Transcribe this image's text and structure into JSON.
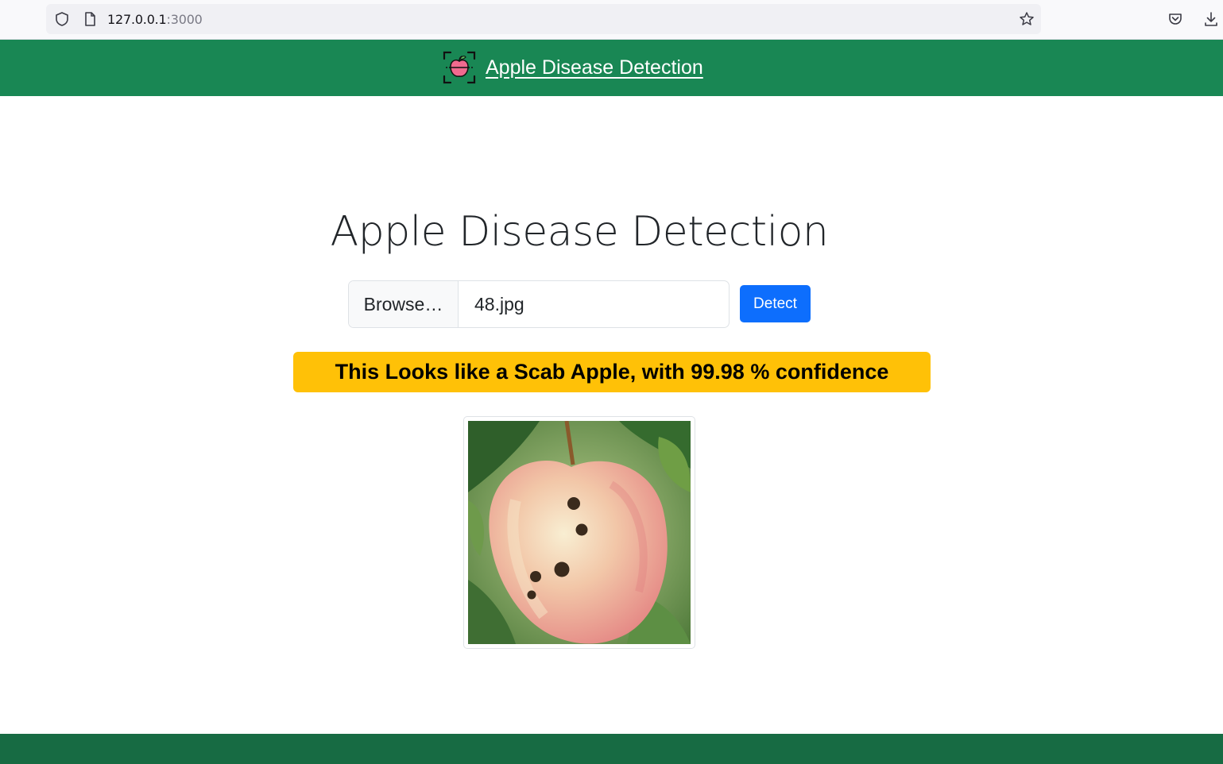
{
  "browser": {
    "url_host": "127.0.0.1",
    "url_port": ":3000",
    "icons": [
      "shield-icon",
      "page-icon",
      "bookmark-star-icon",
      "pocket-icon",
      "download-icon"
    ]
  },
  "navbar": {
    "brand_text": "Apple Disease Detection",
    "brand_icon": "apple-scan-icon",
    "background": "#198754"
  },
  "main": {
    "title": "Apple Disease Detection",
    "file_input": {
      "browse_label": "Browse…",
      "file_name": "48.jpg"
    },
    "detect_label": "Detect",
    "result": {
      "prefix": "This Looks like a ",
      "label": "Scab Apple",
      "middle": ", with ",
      "confidence": "99.98",
      "suffix": " % confidence",
      "background": "#ffc107"
    },
    "image": {
      "subject": "apple-with-scab-spots"
    }
  },
  "colors": {
    "primary_button": "#0d6efd",
    "footer": "#176b43"
  }
}
